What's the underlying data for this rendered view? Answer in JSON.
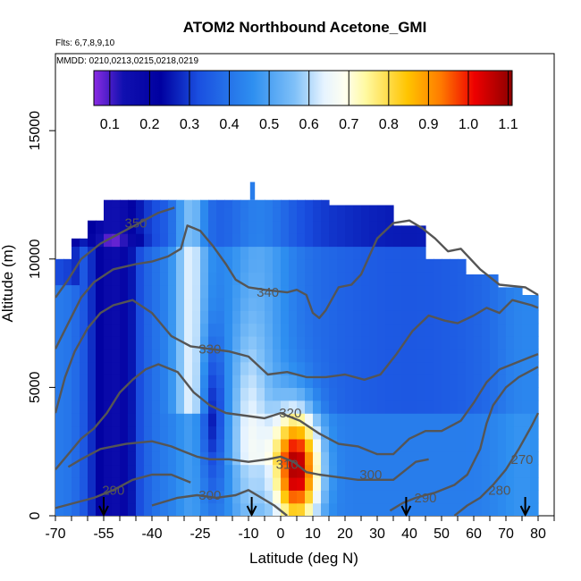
{
  "chart_data": {
    "type": "heatmap",
    "title": "ATOM2 Northbound Acetone_GMI",
    "flights_note": "Flts: 6,7,8,9,10",
    "dates_note": "MMDD: 0210,0213,0215,0218,0219",
    "xlabel": "Latitude (deg N)",
    "ylabel": "Altitude (m)",
    "xlim": [
      -70,
      85
    ],
    "ylim": [
      0,
      18000
    ],
    "x_tick_labels": [
      "-70",
      "-55",
      "-40",
      "-25",
      "-10",
      "0",
      "10",
      "20",
      "30",
      "40",
      "50",
      "60",
      "70",
      "80"
    ],
    "y_tick_labels": [
      "0",
      "5000",
      "10000",
      "15000"
    ],
    "colorbar": {
      "ticks": [
        "0.1",
        "0.2",
        "0.3",
        "0.4",
        "0.5",
        "0.6",
        "0.7",
        "0.8",
        "0.9",
        "1.0",
        "1.1"
      ],
      "range": [
        0.06,
        1.11
      ]
    },
    "contours": [
      {
        "label": "270",
        "lat": 75,
        "alt": 2200
      },
      {
        "label": "280",
        "lat": 68,
        "alt": 1000
      },
      {
        "label": "290",
        "lat": -52,
        "alt": 1000
      },
      {
        "label": "290",
        "lat": 45,
        "alt": 700
      },
      {
        "label": "300",
        "lat": -22,
        "alt": 800
      },
      {
        "label": "300",
        "lat": 28,
        "alt": 1600
      },
      {
        "label": "310",
        "lat": 2,
        "alt": 2000
      },
      {
        "label": "320",
        "lat": 3,
        "alt": 4000
      },
      {
        "label": "330",
        "lat": -22,
        "alt": 6500
      },
      {
        "label": "340",
        "lat": -4,
        "alt": 8700
      },
      {
        "label": "350",
        "lat": -45,
        "alt": 11400
      }
    ],
    "arrows_lat": [
      -55,
      -9,
      39,
      76
    ],
    "colors": {
      "low": "#7a1fd6",
      "mid": "#3a8ff0",
      "neutral": "#fffde0",
      "high": "#e80000",
      "contour": "#555555"
    }
  }
}
